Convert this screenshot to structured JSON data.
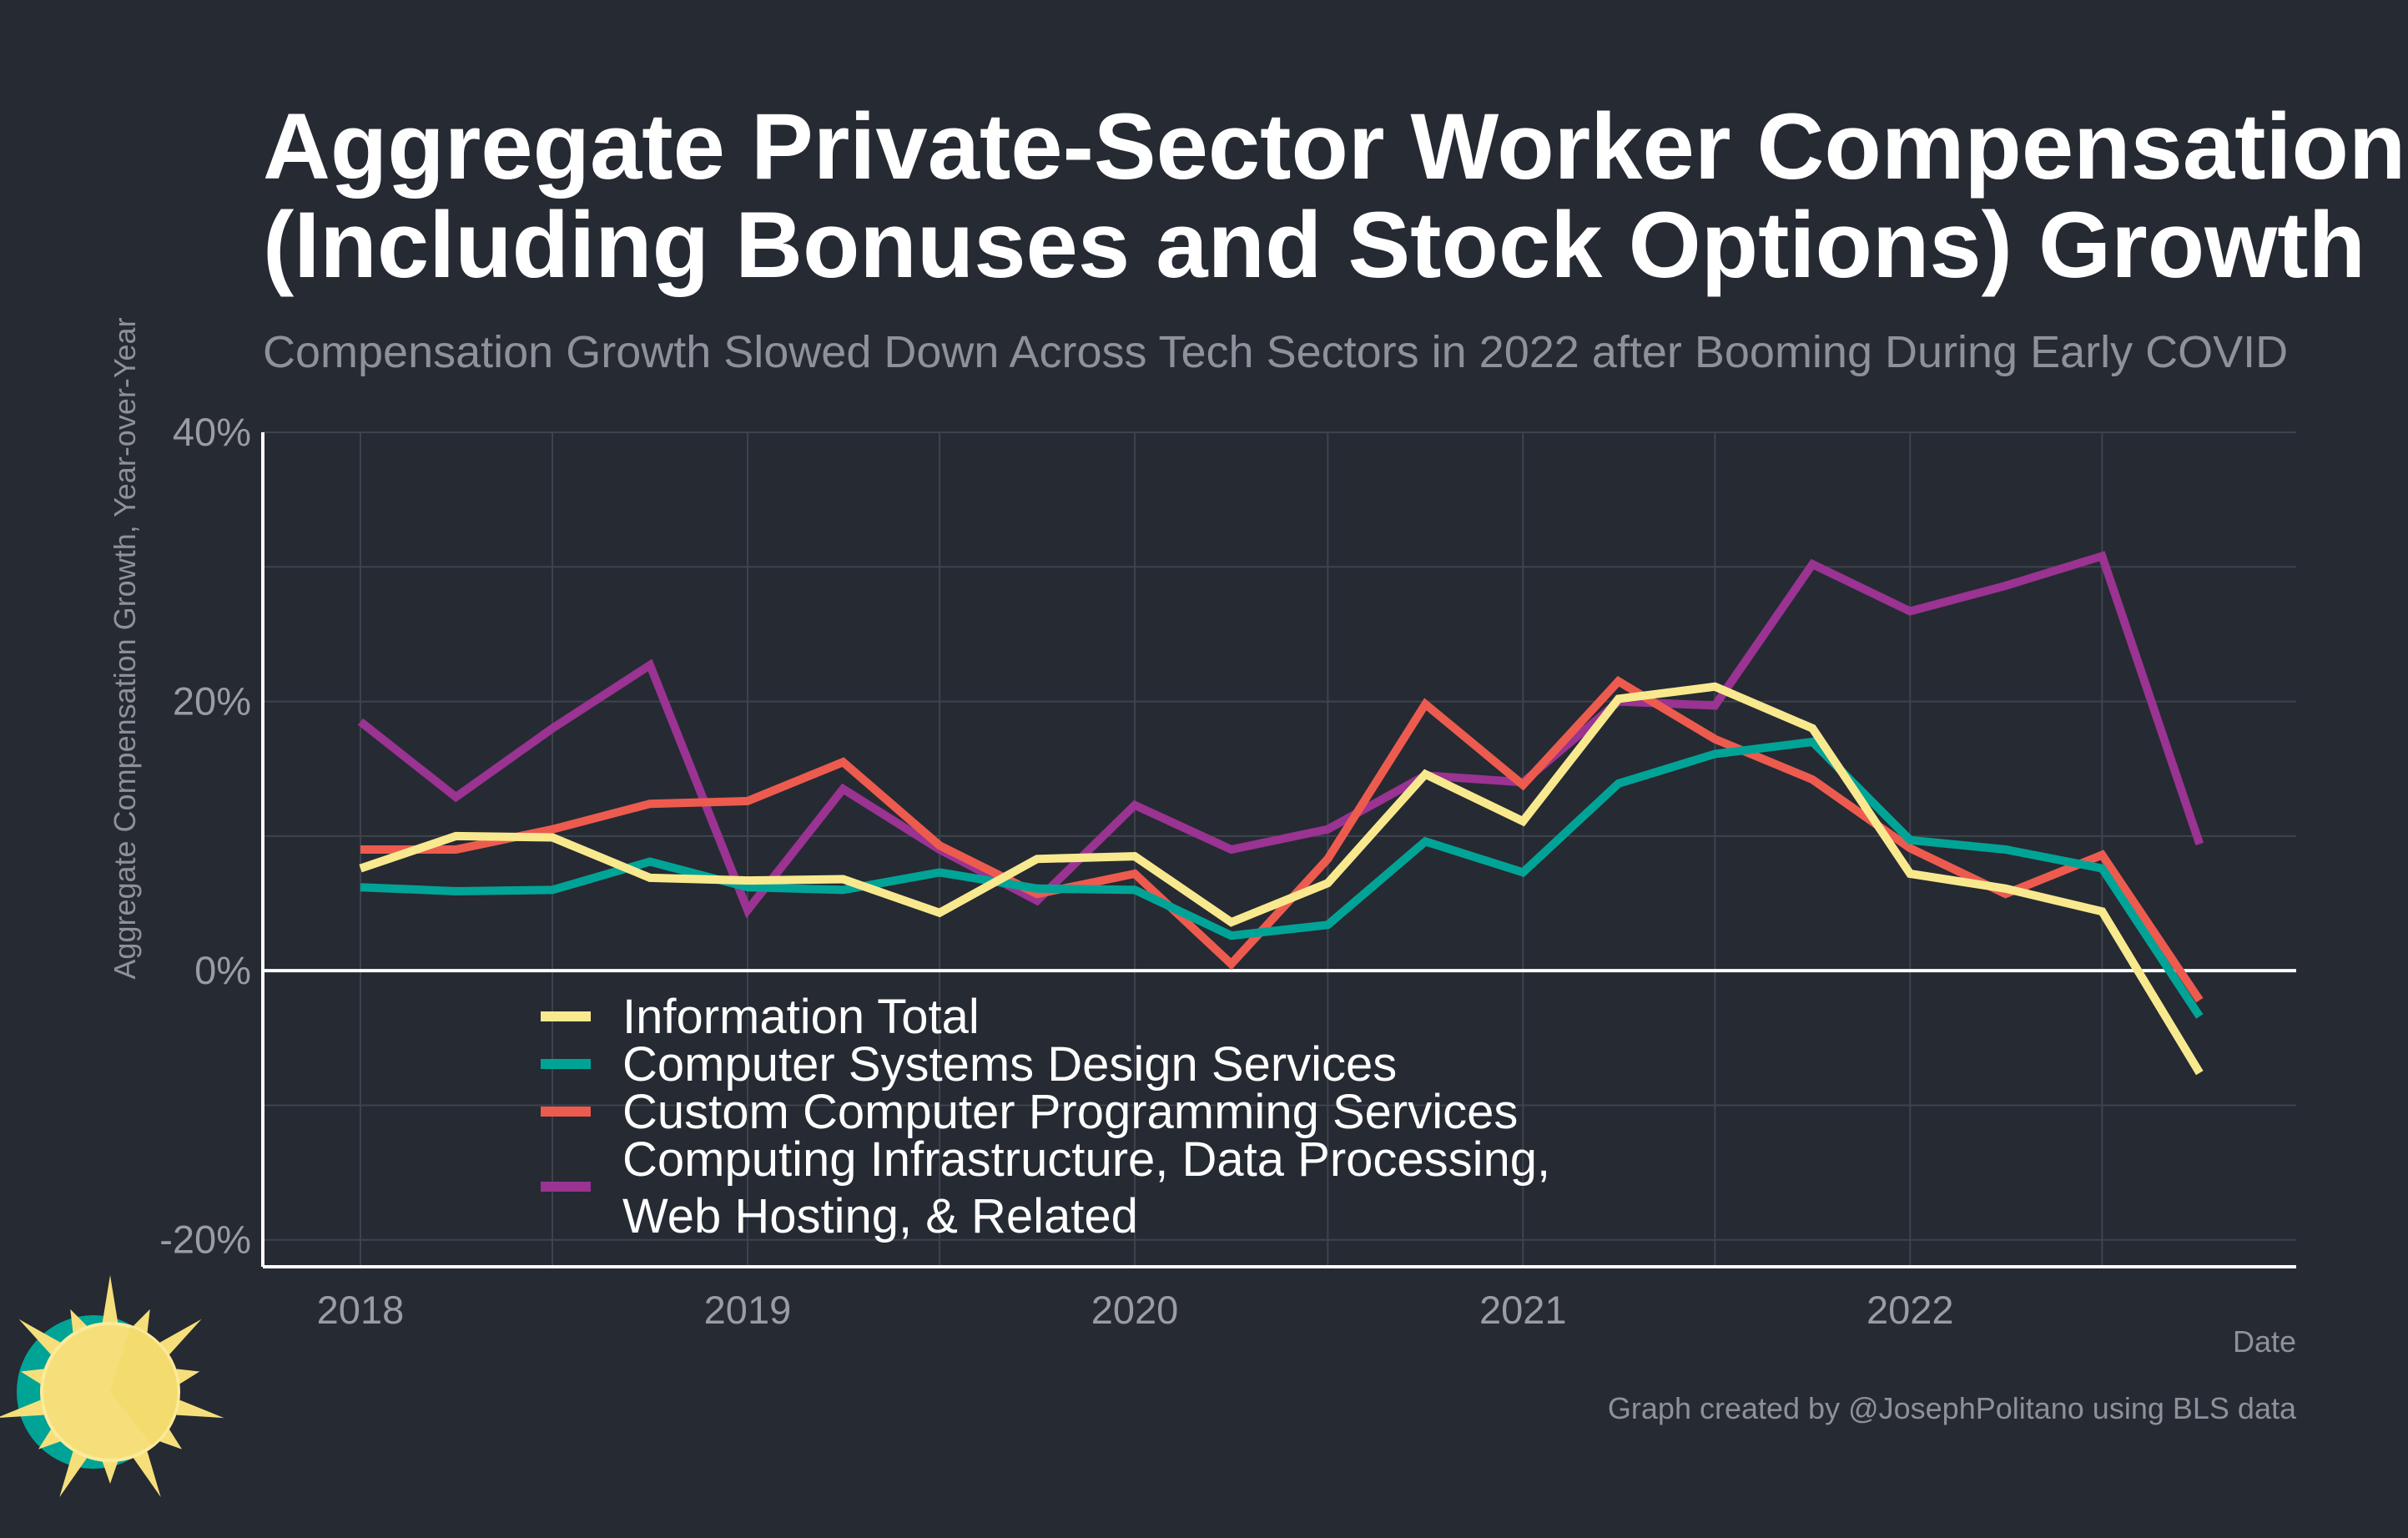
{
  "title": {
    "line1": "Aggregate Private-Sector Worker Compensation",
    "line2": "(Including Bonuses and Stock Options) Growth"
  },
  "subtitle": "Compensation Growth Slowed Down Across Tech Sectors in 2022 after Booming During Early COVID",
  "caption": "Graph created by @JosephPolitano using BLS data",
  "colors": {
    "background": "#262a33",
    "grid": "#3f434d",
    "axis": "#ffffff",
    "information_total": "#f9e98e",
    "computer_systems_design": "#00a497",
    "custom_programming": "#ed5b4f",
    "computing_infrastructure": "#9a3392",
    "logo_sun": "#f6df7a",
    "logo_ring": "#00a497"
  },
  "logo": {
    "icon": "sun-logo-icon"
  },
  "chart_data": {
    "type": "line",
    "title": "Aggregate Private-Sector Worker Compensation (Including Bonuses and Stock Options) Growth",
    "subtitle": "Compensation Growth Slowed Down Across Tech Sectors in 2022 after Booming During Early COVID",
    "xlabel": "Date",
    "ylabel": "Aggregate Compensation Growth, Year-over-Year",
    "xlim": [
      "2017-10-01",
      "2022-12-31"
    ],
    "ylim": [
      -0.22,
      0.4
    ],
    "x_ticks": [
      "2018-01-01",
      "2019-01-01",
      "2020-01-01",
      "2021-01-01",
      "2022-01-01"
    ],
    "x_tick_labels": [
      "2018",
      "2019",
      "2020",
      "2021",
      "2022"
    ],
    "y_ticks": [
      -0.2,
      0,
      0.2,
      0.4
    ],
    "y_tick_labels": [
      "-20%",
      "0%",
      "20%",
      "40%"
    ],
    "y_gridlines": [
      -0.2,
      -0.1,
      0,
      0.1,
      0.2,
      0.3,
      0.4
    ],
    "x_gridlines": [
      "2018-01-01",
      "2018-07-01",
      "2019-01-01",
      "2019-07-01",
      "2020-01-01",
      "2020-07-01",
      "2021-01-01",
      "2021-07-01",
      "2022-01-01",
      "2022-07-01"
    ],
    "grid": true,
    "zero_line": true,
    "legend_position": "bottom-left inside",
    "x": [
      "2018-01-01",
      "2018-04-01",
      "2018-07-01",
      "2018-10-01",
      "2019-01-01",
      "2019-04-01",
      "2019-07-01",
      "2019-10-01",
      "2020-01-01",
      "2020-04-01",
      "2020-07-01",
      "2020-10-01",
      "2021-01-01",
      "2021-04-01",
      "2021-07-01",
      "2021-10-01",
      "2022-01-01",
      "2022-04-01",
      "2022-07-01",
      "2022-10-01"
    ],
    "series": [
      {
        "name": "Computing Infrastructure, Data Processing, Web Hosting, & Related",
        "legend_lines": [
          "Computing Infrastructure, Data Processing,",
          "Web Hosting, & Related"
        ],
        "color_key": "computing_infrastructure",
        "values": [
          0.185,
          0.129,
          0.18,
          0.227,
          0.045,
          0.135,
          0.09,
          0.052,
          0.123,
          0.09,
          0.105,
          0.145,
          0.14,
          0.2,
          0.197,
          0.302,
          0.267,
          0.286,
          0.308,
          0.094
        ]
      },
      {
        "name": "Custom Computer Programming Services",
        "legend_lines": [
          "Custom Computer Programming Services"
        ],
        "color_key": "custom_programming",
        "values": [
          0.09,
          0.09,
          0.105,
          0.124,
          0.126,
          0.155,
          0.093,
          0.057,
          0.072,
          0.005,
          0.083,
          0.198,
          0.138,
          0.215,
          0.172,
          0.142,
          0.091,
          0.057,
          0.086,
          -0.022
        ]
      },
      {
        "name": "Computer Systems Design Services",
        "legend_lines": [
          "Computer Systems Design Services"
        ],
        "color_key": "computer_systems_design",
        "values": [
          0.062,
          0.059,
          0.06,
          0.081,
          0.062,
          0.06,
          0.073,
          0.061,
          0.06,
          0.026,
          0.034,
          0.096,
          0.073,
          0.139,
          0.161,
          0.17,
          0.097,
          0.09,
          0.076,
          -0.034
        ]
      },
      {
        "name": "Information Total",
        "legend_lines": [
          "Information Total"
        ],
        "color_key": "information_total",
        "values": [
          0.076,
          0.1,
          0.099,
          0.069,
          0.067,
          0.068,
          0.043,
          0.083,
          0.085,
          0.036,
          0.065,
          0.146,
          0.111,
          0.202,
          0.211,
          0.18,
          0.072,
          0.061,
          0.044,
          -0.076
        ]
      }
    ],
    "legend_order": [
      "Information Total",
      "Computer Systems Design Services",
      "Custom Computer Programming Services",
      "Computing Infrastructure, Data Processing, Web Hosting, & Related"
    ]
  }
}
